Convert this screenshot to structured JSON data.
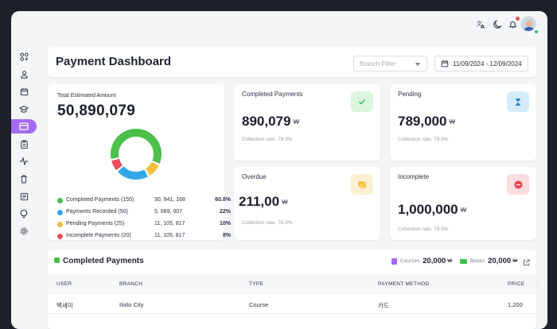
{
  "header": {
    "title": "Payment Dashboard",
    "branch_filter_placeholder": "Branch Filter",
    "date_range": "11/09/2024 - 12/09/2024",
    "icons": [
      "translate-icon",
      "moon-icon",
      "bell-icon",
      "user-avatar"
    ]
  },
  "sidebar": {
    "items": [
      {
        "name": "dashboard-icon",
        "active": false
      },
      {
        "name": "user-icon",
        "active": false
      },
      {
        "name": "calendar-icon",
        "active": false
      },
      {
        "name": "graduation-cap-icon",
        "active": false
      },
      {
        "name": "credit-card-icon",
        "active": true
      },
      {
        "name": "clipboard-icon",
        "active": false
      },
      {
        "name": "activity-icon",
        "active": false
      },
      {
        "name": "trash-icon",
        "active": false
      },
      {
        "name": "newspaper-icon",
        "active": false
      },
      {
        "name": "lightbulb-icon",
        "active": false
      },
      {
        "name": "settings-icon",
        "active": false
      }
    ]
  },
  "total": {
    "label": "Total Estimated Amount",
    "amount": "50,890,079"
  },
  "chart_data": {
    "type": "pie",
    "categories": [
      "Completed Payments",
      "Payments Recorded",
      "Pending Payments",
      "Incomplete Payments"
    ],
    "counts": [
      "(155)",
      "(50)",
      "(25)",
      "(20)"
    ],
    "amounts": [
      "30, 941, 168",
      "5, 089, 007",
      "11, 105, 817",
      "11, 105, 817"
    ],
    "percent_labels": [
      "60.8%",
      "22%",
      "10%",
      "8%"
    ],
    "values": [
      60.8,
      22,
      10,
      8
    ],
    "colors": [
      "#4cc04a",
      "#32a8ea",
      "#f5be3c",
      "#ee4d5a"
    ]
  },
  "stats": {
    "completed": {
      "title": "Completed Payments",
      "value": "890,079",
      "currency": "₩",
      "rate": "Collection rate: 78.9%",
      "icon": "check-icon",
      "color": "#3fbf4f",
      "bg": "#dcf5df"
    },
    "pending": {
      "title": "Pending",
      "value": "789,000",
      "currency": "₩",
      "rate": "Collection rate: 78.9%",
      "icon": "hourglass-icon",
      "color": "#1e86d8",
      "bg": "#d6ecfb"
    },
    "overdue": {
      "title": "Overdue",
      "value": "211,00",
      "currency": "₩",
      "rate": "Collection rate: 78.9%",
      "icon": "card-icon",
      "color": "#f0b52e",
      "bg": "#fcf0d2"
    },
    "incomplete": {
      "title": "Incomplete",
      "value": "1,000,000",
      "currency": "₩",
      "rate": "Collection rate: 78.9%",
      "icon": "minus-circle-icon",
      "color": "#e8424f",
      "bg": "#fbdcdf"
    }
  },
  "payments_table": {
    "title": "Completed Payments",
    "summary": [
      {
        "label": "Courses",
        "value": "20,000",
        "currency": "₩",
        "color": "#a66cf2",
        "icon": "course-icon"
      },
      {
        "label": "Books",
        "value": "20,000",
        "currency": "₩",
        "color": "#3fbf4f",
        "icon": "book-icon"
      }
    ],
    "columns": [
      "USER",
      "BRANCH",
      "TYPE",
      "PAYMENT METHOD",
      "PRICE"
    ],
    "rows": [
      {
        "user": "백세미",
        "branch": "Iloilo City",
        "type": "Course",
        "method": "카드",
        "price": "1,200"
      }
    ]
  }
}
